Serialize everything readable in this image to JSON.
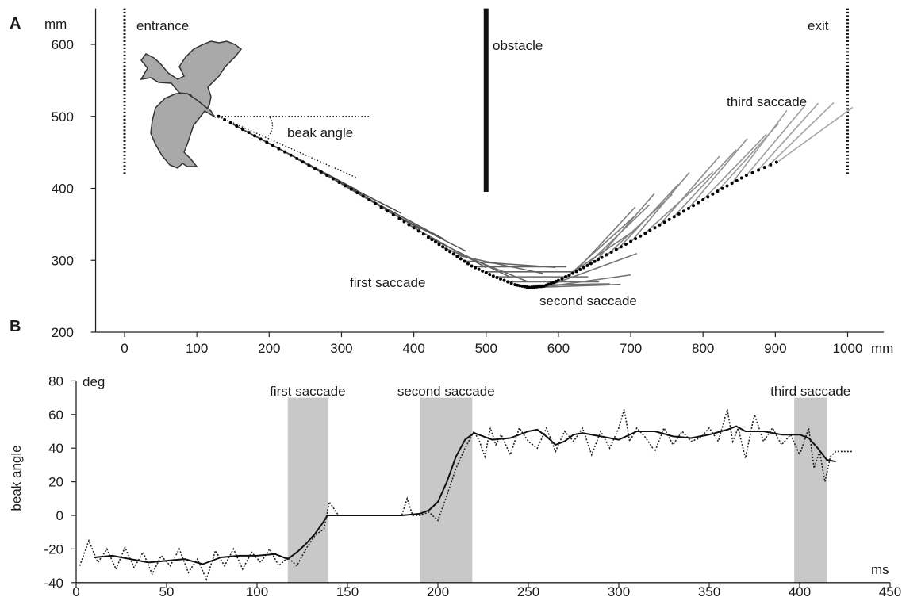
{
  "figure": {
    "panel_a_letter": "A",
    "panel_b_letter": "B"
  },
  "chart_data": [
    {
      "type": "line",
      "panel": "A",
      "xunit": "mm",
      "yunit": "mm",
      "xlim": [
        -40,
        1050
      ],
      "ylim": [
        200,
        650
      ],
      "xticks": [
        0,
        100,
        200,
        300,
        400,
        500,
        600,
        700,
        800,
        900,
        1000
      ],
      "yticks": [
        200,
        300,
        400,
        500,
        600
      ],
      "annotations": {
        "entrance": "entrance",
        "obstacle": "obstacle",
        "exit": "exit",
        "beak_angle": "beak angle",
        "first_saccade": "first saccade",
        "second_saccade": "second saccade",
        "third_saccade": "third saccade"
      },
      "walls": {
        "entrance": {
          "x": 0,
          "y": [
            420,
            650
          ]
        },
        "obstacle": {
          "x": 500,
          "y": [
            395,
            650
          ]
        },
        "exit": {
          "x": 1000,
          "y": [
            420,
            650
          ]
        }
      },
      "beak_reference": {
        "x": [
          130,
          340
        ],
        "y": [
          500,
          500
        ]
      },
      "beak_example_line": {
        "x": [
          130,
          320
        ],
        "y": [
          500,
          415
        ]
      },
      "head_trajectory": {
        "x": [
          130,
          180,
          230,
          280,
          330,
          380,
          420,
          450,
          480,
          510,
          540,
          560,
          580,
          600,
          630,
          660,
          700,
          740,
          780,
          820,
          860,
          910
        ],
        "y": [
          500,
          473,
          446,
          418,
          389,
          358,
          332,
          312,
          292,
          278,
          266,
          262,
          264,
          272,
          287,
          304,
          326,
          349,
          372,
          396,
          418,
          440
        ]
      },
      "beak_lines": [
        {
          "x": 150,
          "y": 489,
          "angle": -28
        },
        {
          "x": 180,
          "y": 473,
          "angle": -28
        },
        {
          "x": 210,
          "y": 457,
          "angle": -28
        },
        {
          "x": 240,
          "y": 440,
          "angle": -29
        },
        {
          "x": 270,
          "y": 423,
          "angle": -27
        },
        {
          "x": 300,
          "y": 406,
          "angle": -30
        },
        {
          "x": 330,
          "y": 389,
          "angle": -28
        },
        {
          "x": 360,
          "y": 370,
          "angle": -27
        },
        {
          "x": 390,
          "y": 351,
          "angle": -29
        },
        {
          "x": 420,
          "y": 332,
          "angle": -26
        },
        {
          "x": 440,
          "y": 318,
          "angle": -22
        },
        {
          "x": 455,
          "y": 308,
          "angle": -12
        },
        {
          "x": 470,
          "y": 299,
          "angle": -4
        },
        {
          "x": 485,
          "y": 291,
          "angle": 0
        },
        {
          "x": 500,
          "y": 284,
          "angle": 0
        },
        {
          "x": 515,
          "y": 277,
          "angle": 0
        },
        {
          "x": 530,
          "y": 270,
          "angle": 0
        },
        {
          "x": 545,
          "y": 265,
          "angle": 1
        },
        {
          "x": 560,
          "y": 262,
          "angle": 2
        },
        {
          "x": 575,
          "y": 262,
          "angle": 8
        },
        {
          "x": 590,
          "y": 266,
          "angle": 20
        },
        {
          "x": 600,
          "y": 270,
          "angle": 34
        },
        {
          "x": 610,
          "y": 275,
          "angle": 42
        },
        {
          "x": 620,
          "y": 281,
          "angle": 47
        },
        {
          "x": 635,
          "y": 289,
          "angle": 44
        },
        {
          "x": 650,
          "y": 297,
          "angle": 49
        },
        {
          "x": 665,
          "y": 305,
          "angle": 43
        },
        {
          "x": 680,
          "y": 313,
          "angle": 47
        },
        {
          "x": 700,
          "y": 325,
          "angle": 50
        },
        {
          "x": 720,
          "y": 338,
          "angle": 42
        },
        {
          "x": 740,
          "y": 349,
          "angle": 49
        },
        {
          "x": 760,
          "y": 361,
          "angle": 47
        },
        {
          "x": 780,
          "y": 372,
          "angle": 50
        },
        {
          "x": 800,
          "y": 384,
          "angle": 46
        },
        {
          "x": 820,
          "y": 396,
          "angle": 48
        },
        {
          "x": 840,
          "y": 407,
          "angle": 53
        },
        {
          "x": 860,
          "y": 418,
          "angle": 50
        },
        {
          "x": 875,
          "y": 424,
          "angle": 48
        },
        {
          "x": 890,
          "y": 431,
          "angle": 44
        },
        {
          "x": 905,
          "y": 438,
          "angle": 36
        }
      ]
    },
    {
      "type": "line",
      "panel": "B",
      "ylabel": "beak angle",
      "xunit": "ms",
      "yunit": "deg",
      "xlim": [
        0,
        450
      ],
      "ylim": [
        -40,
        80
      ],
      "xticks": [
        0,
        50,
        100,
        150,
        200,
        250,
        300,
        350,
        400,
        450
      ],
      "yticks": [
        -40,
        -20,
        0,
        20,
        40,
        60,
        80
      ],
      "saccade_windows": [
        {
          "label": "first saccade",
          "x": [
            117,
            139
          ]
        },
        {
          "label": "second saccade",
          "x": [
            190,
            219
          ]
        },
        {
          "label": "third saccade",
          "x": [
            397,
            415
          ]
        }
      ],
      "series": [
        {
          "style": "raw-dotted",
          "x": [
            2,
            7,
            12,
            17,
            22,
            27,
            32,
            37,
            42,
            47,
            52,
            57,
            62,
            67,
            72,
            77,
            82,
            87,
            92,
            97,
            102,
            107,
            112,
            117,
            122,
            127,
            132,
            137,
            140,
            145,
            150,
            155,
            160,
            165,
            170,
            175,
            180,
            183,
            186,
            190,
            195,
            200,
            205,
            210,
            215,
            220,
            223,
            226,
            229,
            232,
            235,
            240,
            245,
            250,
            255,
            260,
            265,
            270,
            275,
            280,
            285,
            290,
            295,
            300,
            303,
            306,
            310,
            315,
            320,
            325,
            330,
            335,
            340,
            345,
            350,
            355,
            360,
            363,
            366,
            370,
            375,
            380,
            385,
            390,
            395,
            400,
            405,
            408,
            411,
            414,
            417,
            420,
            425,
            429
          ],
          "y": [
            -30,
            -15,
            -28,
            -20,
            -32,
            -19,
            -31,
            -22,
            -35,
            -24,
            -30,
            -20,
            -34,
            -26,
            -38,
            -21,
            -30,
            -20,
            -32,
            -22,
            -28,
            -20,
            -30,
            -25,
            -30,
            -20,
            -12,
            -8,
            8,
            0,
            0,
            0,
            0,
            0,
            0,
            0,
            0,
            10,
            0,
            0,
            2,
            -3,
            12,
            28,
            40,
            50,
            44,
            35,
            52,
            42,
            48,
            36,
            52,
            44,
            40,
            52,
            38,
            50,
            44,
            52,
            36,
            50,
            40,
            52,
            63,
            44,
            52,
            46,
            38,
            52,
            42,
            50,
            44,
            46,
            52,
            44,
            63,
            44,
            52,
            34,
            60,
            44,
            52,
            42,
            48,
            36,
            52,
            28,
            38,
            20,
            35,
            38,
            38,
            38
          ]
        },
        {
          "style": "smoothed-solid",
          "x": [
            10,
            20,
            30,
            40,
            50,
            60,
            70,
            80,
            90,
            100,
            110,
            117,
            122,
            127,
            132,
            136,
            139,
            142,
            150,
            160,
            170,
            180,
            190,
            195,
            200,
            205,
            210,
            215,
            220,
            230,
            240,
            250,
            255,
            260,
            265,
            270,
            275,
            280,
            290,
            300,
            310,
            320,
            330,
            340,
            350,
            360,
            365,
            370,
            380,
            390,
            400,
            405,
            410,
            415,
            420
          ],
          "y": [
            -25,
            -24,
            -26,
            -28,
            -27,
            -26,
            -29,
            -25,
            -24,
            -24,
            -23,
            -26,
            -22,
            -17,
            -11,
            -5,
            0,
            0,
            0,
            0,
            0,
            0,
            1,
            3,
            8,
            20,
            35,
            45,
            49,
            45,
            46,
            50,
            51,
            47,
            42,
            44,
            48,
            49,
            47,
            45,
            50,
            50,
            47,
            46,
            48,
            51,
            53,
            50,
            50,
            48,
            48,
            46,
            40,
            33,
            32
          ]
        }
      ]
    }
  ]
}
